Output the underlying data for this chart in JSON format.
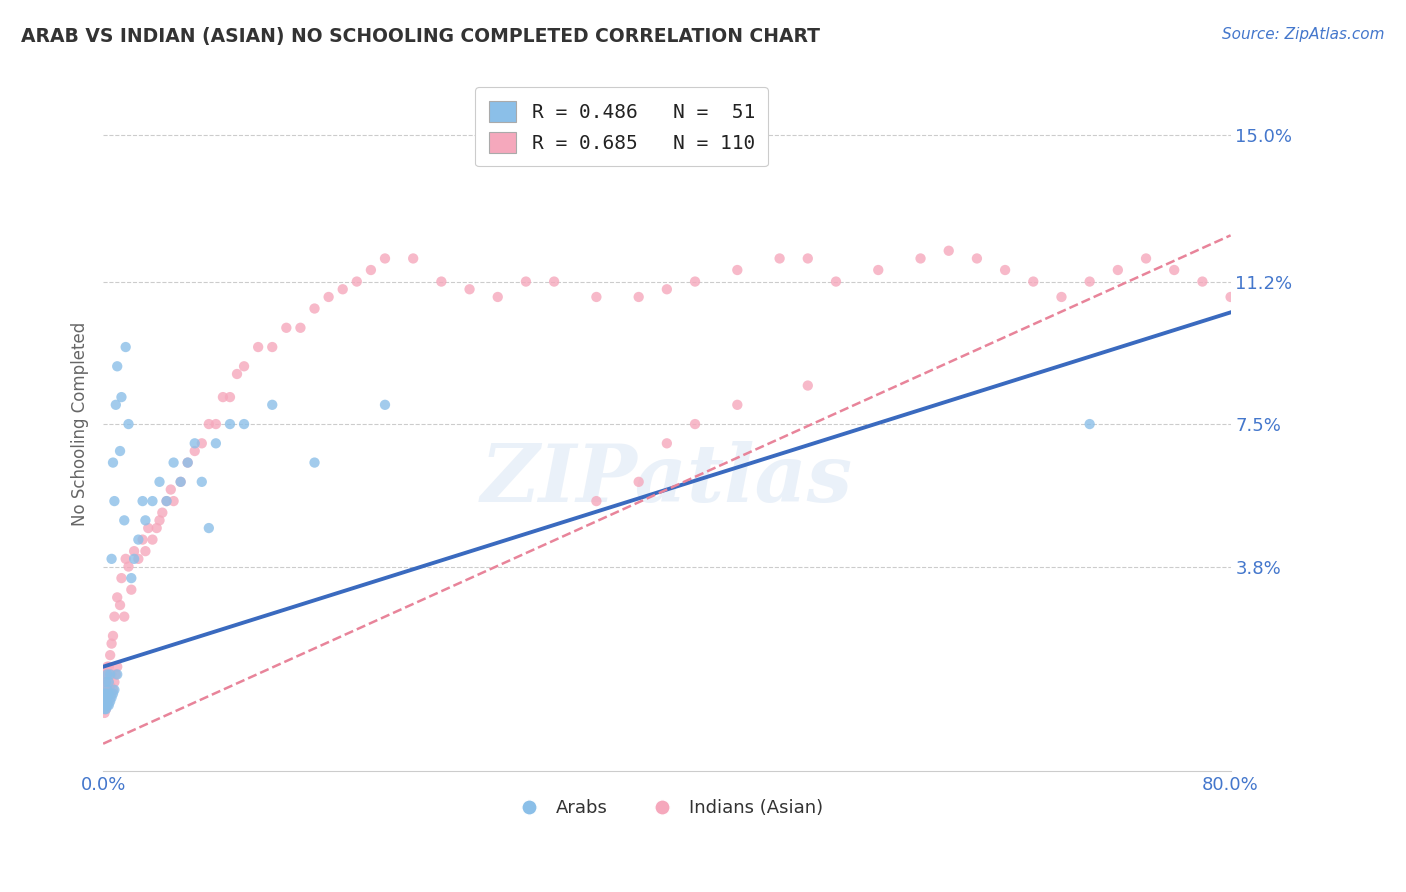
{
  "title": "ARAB VS INDIAN (ASIAN) NO SCHOOLING COMPLETED CORRELATION CHART",
  "source_text": "Source: ZipAtlas.com",
  "ylabel": "No Schooling Completed",
  "xlabel": "",
  "xlim": [
    0.0,
    0.8
  ],
  "ylim": [
    -0.015,
    0.165
  ],
  "x_ticks": [
    0.0,
    0.8
  ],
  "x_tick_labels": [
    "0.0%",
    "80.0%"
  ],
  "y_ticks": [
    0.038,
    0.075,
    0.112,
    0.15
  ],
  "y_tick_labels": [
    "3.8%",
    "7.5%",
    "11.2%",
    "15.0%"
  ],
  "grid_color": "#cccccc",
  "background_color": "#ffffff",
  "arab_color": "#8bbfe8",
  "indian_color": "#f5a8bc",
  "arab_line_color": "#3a6abf",
  "indian_line_color": "#e8849a",
  "arab_line_intercept": 0.012,
  "arab_line_slope": 0.115,
  "indian_line_intercept": -0.008,
  "indian_line_slope": 0.165,
  "watermark": "ZIPatlas",
  "legend_arab_label": "R = 0.486   N =  51",
  "legend_indian_label": "R = 0.685   N = 110",
  "arab_scatter_x": [
    0.001,
    0.001,
    0.001,
    0.002,
    0.002,
    0.002,
    0.002,
    0.003,
    0.003,
    0.003,
    0.003,
    0.004,
    0.004,
    0.004,
    0.005,
    0.005,
    0.006,
    0.006,
    0.007,
    0.007,
    0.008,
    0.008,
    0.009,
    0.01,
    0.01,
    0.012,
    0.013,
    0.015,
    0.016,
    0.018,
    0.02,
    0.022,
    0.025,
    0.028,
    0.03,
    0.035,
    0.04,
    0.045,
    0.05,
    0.055,
    0.06,
    0.065,
    0.07,
    0.08,
    0.09,
    0.1,
    0.12,
    0.15,
    0.2,
    0.7,
    0.075
  ],
  "arab_scatter_y": [
    0.001,
    0.003,
    0.005,
    0.001,
    0.003,
    0.005,
    0.008,
    0.002,
    0.004,
    0.006,
    0.01,
    0.002,
    0.005,
    0.008,
    0.003,
    0.01,
    0.004,
    0.04,
    0.005,
    0.065,
    0.006,
    0.055,
    0.08,
    0.01,
    0.09,
    0.068,
    0.082,
    0.05,
    0.095,
    0.075,
    0.035,
    0.04,
    0.045,
    0.055,
    0.05,
    0.055,
    0.06,
    0.055,
    0.065,
    0.06,
    0.065,
    0.07,
    0.06,
    0.07,
    0.075,
    0.075,
    0.08,
    0.065,
    0.08,
    0.075,
    0.048
  ],
  "indian_scatter_x": [
    0.001,
    0.001,
    0.001,
    0.001,
    0.001,
    0.001,
    0.001,
    0.001,
    0.001,
    0.001,
    0.002,
    0.002,
    0.002,
    0.002,
    0.002,
    0.002,
    0.002,
    0.003,
    0.003,
    0.003,
    0.003,
    0.003,
    0.004,
    0.004,
    0.004,
    0.004,
    0.005,
    0.005,
    0.005,
    0.006,
    0.006,
    0.006,
    0.007,
    0.007,
    0.008,
    0.008,
    0.009,
    0.01,
    0.01,
    0.012,
    0.013,
    0.015,
    0.016,
    0.018,
    0.02,
    0.022,
    0.025,
    0.028,
    0.03,
    0.032,
    0.035,
    0.038,
    0.04,
    0.042,
    0.045,
    0.048,
    0.05,
    0.055,
    0.06,
    0.065,
    0.07,
    0.075,
    0.08,
    0.085,
    0.09,
    0.095,
    0.1,
    0.11,
    0.12,
    0.13,
    0.14,
    0.15,
    0.16,
    0.17,
    0.18,
    0.19,
    0.2,
    0.22,
    0.24,
    0.26,
    0.28,
    0.3,
    0.32,
    0.35,
    0.38,
    0.4,
    0.42,
    0.45,
    0.48,
    0.5,
    0.52,
    0.55,
    0.58,
    0.6,
    0.62,
    0.64,
    0.66,
    0.68,
    0.7,
    0.72,
    0.74,
    0.76,
    0.78,
    0.8,
    0.35,
    0.38,
    0.4,
    0.42,
    0.45,
    0.5
  ],
  "indian_scatter_y": [
    0.0,
    0.001,
    0.002,
    0.003,
    0.004,
    0.005,
    0.006,
    0.007,
    0.008,
    0.01,
    0.001,
    0.002,
    0.003,
    0.005,
    0.006,
    0.008,
    0.01,
    0.002,
    0.004,
    0.006,
    0.008,
    0.012,
    0.003,
    0.005,
    0.008,
    0.012,
    0.004,
    0.007,
    0.015,
    0.005,
    0.01,
    0.018,
    0.006,
    0.02,
    0.008,
    0.025,
    0.01,
    0.012,
    0.03,
    0.028,
    0.035,
    0.025,
    0.04,
    0.038,
    0.032,
    0.042,
    0.04,
    0.045,
    0.042,
    0.048,
    0.045,
    0.048,
    0.05,
    0.052,
    0.055,
    0.058,
    0.055,
    0.06,
    0.065,
    0.068,
    0.07,
    0.075,
    0.075,
    0.082,
    0.082,
    0.088,
    0.09,
    0.095,
    0.095,
    0.1,
    0.1,
    0.105,
    0.108,
    0.11,
    0.112,
    0.115,
    0.118,
    0.118,
    0.112,
    0.11,
    0.108,
    0.112,
    0.112,
    0.108,
    0.108,
    0.11,
    0.112,
    0.115,
    0.118,
    0.118,
    0.112,
    0.115,
    0.118,
    0.12,
    0.118,
    0.115,
    0.112,
    0.108,
    0.112,
    0.115,
    0.118,
    0.115,
    0.112,
    0.108,
    0.055,
    0.06,
    0.07,
    0.075,
    0.08,
    0.085
  ]
}
